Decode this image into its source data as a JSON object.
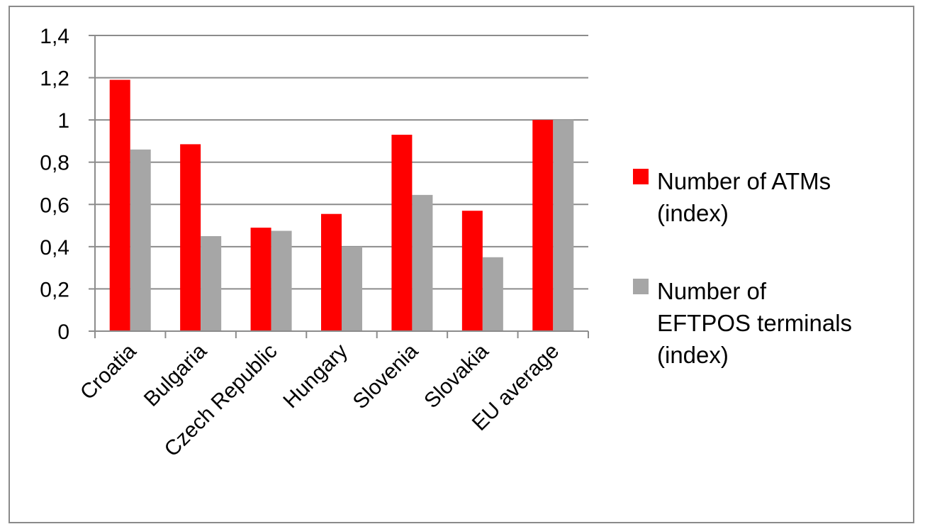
{
  "chart_data": {
    "type": "bar",
    "title": "",
    "xlabel": "",
    "ylabel": "",
    "categories": [
      "Croatia",
      "Bulgaria",
      "Czech Republic",
      "Hungary",
      "Slovenia",
      "Slovakia",
      "EU average"
    ],
    "series": [
      {
        "name": "Number of ATMs (index)",
        "legend_lines": [
          "Number of ATMs",
          "(index)"
        ],
        "color": "#ff0000",
        "values": [
          1.19,
          0.885,
          0.49,
          0.555,
          0.93,
          0.57,
          1.0
        ]
      },
      {
        "name": "Number of EFTPOS terminals (index)",
        "legend_lines": [
          "Number of",
          "EFTPOS terminals",
          "(index)"
        ],
        "color": "#a6a6a6",
        "values": [
          0.86,
          0.45,
          0.475,
          0.4,
          0.645,
          0.35,
          1.0
        ]
      }
    ],
    "ylim": [
      0,
      1.4
    ],
    "yticks": [
      0,
      0.2,
      0.4,
      0.6,
      0.8,
      1.0,
      1.2,
      1.4
    ],
    "ytick_labels": [
      "0",
      "0,2",
      "0,4",
      "0,6",
      "0,8",
      "1",
      "1,2",
      "1,4"
    ],
    "grid": true,
    "legend_position": "right"
  }
}
